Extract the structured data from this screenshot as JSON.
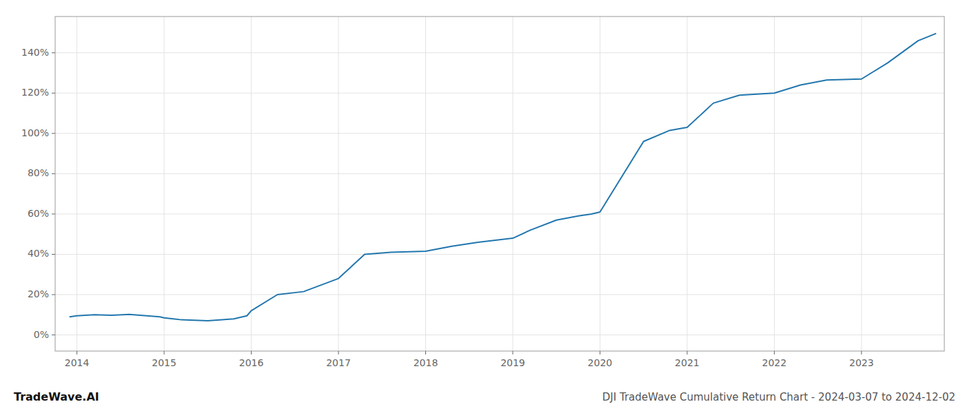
{
  "chart_data": {
    "type": "line",
    "title": "DJI TradeWave Cumulative Return Chart - 2024-03-07 to 2024-12-02",
    "annotations": [
      "TradeWave.AI"
    ],
    "color": "#2176ae",
    "x": [
      2013.92,
      2014.0,
      2014.2,
      2014.4,
      2014.6,
      2014.8,
      2014.95,
      2015.0,
      2015.2,
      2015.5,
      2015.8,
      2015.95,
      2016.0,
      2016.3,
      2016.6,
      2017.0,
      2017.3,
      2017.6,
      2018.0,
      2018.3,
      2018.6,
      2019.0,
      2019.2,
      2019.5,
      2019.75,
      2019.9,
      2020.0,
      2020.2,
      2020.5,
      2020.8,
      2021.0,
      2021.3,
      2021.6,
      2022.0,
      2022.3,
      2022.6,
      2023.0,
      2023.3,
      2023.65,
      2023.85
    ],
    "values": [
      9.0,
      9.5,
      10.0,
      9.8,
      10.2,
      9.5,
      9.0,
      8.5,
      7.5,
      7.0,
      8.0,
      9.5,
      12.0,
      20.0,
      21.5,
      28.0,
      40.0,
      41.0,
      41.5,
      44.0,
      46.0,
      48.0,
      52.0,
      57.0,
      59.0,
      60.0,
      61.0,
      75.0,
      96.0,
      101.5,
      103.0,
      115.0,
      119.0,
      120.0,
      124.0,
      126.5,
      127.0,
      135.0,
      146.0,
      149.5
    ],
    "xlim": [
      2013.75,
      2023.95
    ],
    "xticks": [
      2014,
      2015,
      2016,
      2017,
      2018,
      2019,
      2020,
      2021,
      2022,
      2023
    ],
    "ylim": [
      -8,
      158
    ],
    "yticks": [
      {
        "value": 0,
        "label": "0%"
      },
      {
        "value": 20,
        "label": "20%"
      },
      {
        "value": 40,
        "label": "40%"
      },
      {
        "value": 60,
        "label": "60%"
      },
      {
        "value": 80,
        "label": "80%"
      },
      {
        "value": 100,
        "label": "100%"
      },
      {
        "value": 120,
        "label": "120%"
      },
      {
        "value": 140,
        "label": "140%"
      }
    ],
    "grid": true
  }
}
